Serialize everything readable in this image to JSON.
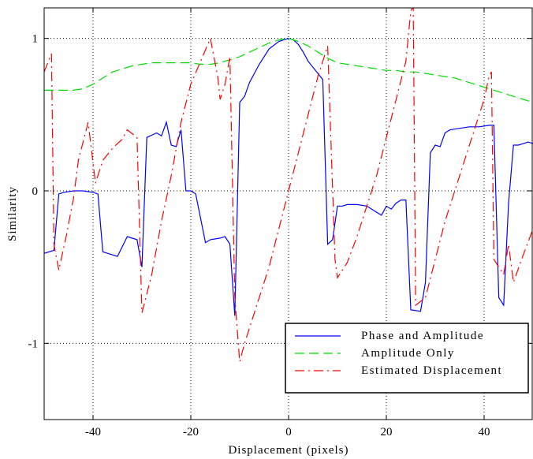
{
  "chart_data": {
    "type": "line",
    "title": "",
    "xlabel": "Displacement (pixels)",
    "ylabel": "Similarity",
    "xlim": [
      -50,
      50
    ],
    "ylim": [
      -1.5,
      1.2
    ],
    "xticks": [
      -40,
      -20,
      0,
      20,
      40
    ],
    "xtick_labels": [
      "-40",
      "-20",
      "0",
      "20",
      "40"
    ],
    "yticks": [
      -1,
      0,
      1
    ],
    "ytick_labels": [
      "-1",
      "0",
      "1"
    ],
    "grid": true,
    "legend_position": "bottom-right",
    "series": [
      {
        "name": "Phase and Amplitude",
        "color": "#0000ff",
        "style": "solid",
        "x": [
          -50,
          -48,
          -47,
          -46,
          -44,
          -42,
          -40,
          -39,
          -38,
          -36,
          -35,
          -33,
          -31,
          -30,
          -29,
          -27,
          -26,
          -25,
          -24,
          -23,
          -22,
          -21,
          -20,
          -19,
          -17,
          -16,
          -14,
          -13,
          -12,
          -11,
          -10,
          -9,
          -8,
          -6,
          -4,
          -2,
          -1,
          0,
          1,
          2,
          3,
          4,
          6,
          7,
          8,
          9,
          10,
          11,
          12,
          14,
          16,
          18,
          19,
          20,
          21,
          22,
          23,
          24,
          25,
          27,
          28,
          29,
          30,
          31,
          32,
          33,
          35,
          37,
          39,
          41,
          42,
          43,
          44,
          45,
          46,
          47,
          48,
          49,
          50
        ],
        "y": [
          -0.41,
          -0.39,
          -0.02,
          -0.01,
          0.0,
          0.0,
          -0.01,
          -0.02,
          -0.4,
          -0.42,
          -0.43,
          -0.3,
          -0.32,
          -0.5,
          0.35,
          0.38,
          0.36,
          0.45,
          0.3,
          0.29,
          0.4,
          0.0,
          0.0,
          -0.02,
          -0.34,
          -0.32,
          -0.31,
          -0.3,
          -0.35,
          -0.82,
          0.58,
          0.62,
          0.71,
          0.83,
          0.93,
          0.98,
          0.99,
          1.0,
          0.99,
          0.96,
          0.91,
          0.85,
          0.77,
          0.73,
          -0.35,
          -0.32,
          -0.1,
          -0.1,
          -0.09,
          -0.09,
          -0.1,
          -0.14,
          -0.16,
          -0.1,
          -0.12,
          -0.08,
          -0.06,
          -0.06,
          -0.78,
          -0.79,
          -0.6,
          0.25,
          0.3,
          0.29,
          0.38,
          0.4,
          0.41,
          0.42,
          0.42,
          0.43,
          0.43,
          -0.7,
          -0.75,
          -0.08,
          0.3,
          0.3,
          0.31,
          0.32,
          0.31
        ]
      },
      {
        "name": "Amplitude Only",
        "color": "#00dd00",
        "style": "dashed",
        "x": [
          -50,
          -48,
          -46,
          -44,
          -42,
          -40,
          -38,
          -36,
          -34,
          -32,
          -30,
          -28,
          -26,
          -24,
          -22,
          -20,
          -18,
          -16,
          -14,
          -12,
          -10,
          -8,
          -6,
          -4,
          -2,
          0,
          2,
          4,
          6,
          8,
          10,
          12,
          14,
          16,
          18,
          20,
          22,
          24,
          26,
          28,
          30,
          32,
          34,
          36,
          38,
          40,
          42,
          44,
          46,
          48,
          50
        ],
        "y": [
          0.66,
          0.66,
          0.66,
          0.66,
          0.67,
          0.7,
          0.74,
          0.78,
          0.8,
          0.82,
          0.83,
          0.84,
          0.84,
          0.84,
          0.84,
          0.84,
          0.83,
          0.83,
          0.84,
          0.86,
          0.88,
          0.91,
          0.94,
          0.97,
          0.99,
          1.0,
          0.98,
          0.95,
          0.91,
          0.87,
          0.84,
          0.83,
          0.82,
          0.81,
          0.8,
          0.79,
          0.79,
          0.78,
          0.78,
          0.77,
          0.76,
          0.75,
          0.74,
          0.72,
          0.7,
          0.68,
          0.66,
          0.64,
          0.62,
          0.6,
          0.58
        ]
      },
      {
        "name": "Estimated Displacement",
        "color": "#ff0000",
        "style": "dashdot",
        "x": [
          -50,
          -48.5,
          -48,
          -47,
          -45.5,
          -44,
          -43,
          -41,
          -39.5,
          -38,
          -36,
          -34,
          -33,
          -31,
          -30,
          -28,
          -26,
          -24,
          -22,
          -20,
          -18,
          -16,
          -14.5,
          -14,
          -13,
          -12,
          -11,
          -10,
          -9,
          -8,
          -6,
          -4,
          -2,
          0,
          2,
          4,
          6,
          8,
          9.5,
          10,
          12,
          14,
          16,
          18,
          20,
          22,
          24,
          25,
          25.5,
          26,
          28,
          30,
          32,
          34,
          36,
          38,
          40,
          41,
          41.5,
          42,
          44,
          45,
          46,
          48,
          50
        ],
        "y": [
          0.78,
          0.9,
          -0.35,
          -0.52,
          -0.3,
          -0.05,
          0.2,
          0.45,
          0.05,
          0.2,
          0.28,
          0.34,
          0.4,
          0.35,
          -0.8,
          -0.55,
          -0.2,
          0.1,
          0.45,
          0.7,
          0.85,
          1.0,
          0.75,
          0.6,
          0.7,
          0.88,
          -0.7,
          -1.12,
          -1.0,
          -0.9,
          -0.7,
          -0.5,
          -0.25,
          0.0,
          0.25,
          0.5,
          0.75,
          0.95,
          -0.45,
          -0.57,
          -0.47,
          -0.3,
          -0.1,
          0.1,
          0.35,
          0.6,
          0.85,
          1.18,
          1.21,
          -0.75,
          -0.7,
          -0.45,
          -0.2,
          0.0,
          0.2,
          0.4,
          0.6,
          0.75,
          0.78,
          -0.45,
          -0.55,
          -0.35,
          -0.6,
          -0.42,
          -0.25
        ]
      }
    ]
  }
}
